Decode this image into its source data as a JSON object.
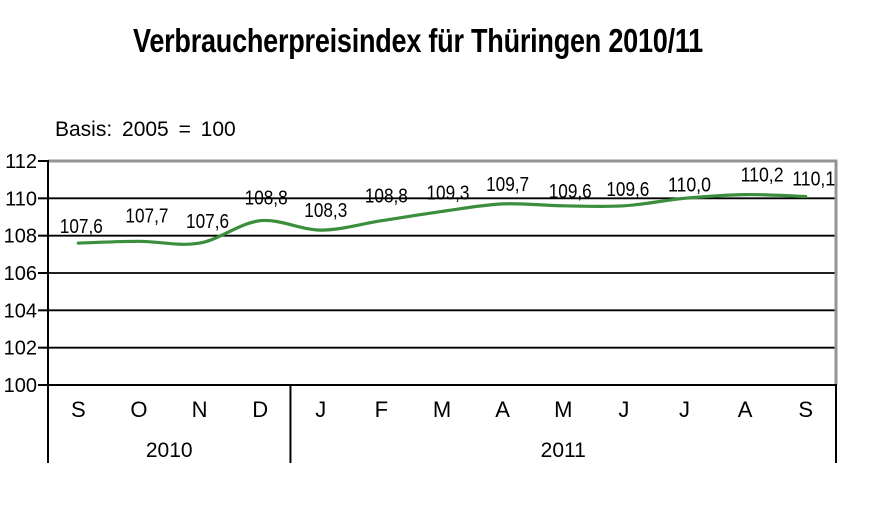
{
  "title": "Verbraucherpreisindex für Thüringen 2010/11",
  "subtitle": "Basis: 2005 = 100",
  "colors": {
    "line": "#3a8e3c",
    "gridline": "#000000",
    "axis": "#000000",
    "plot_border": "#949494",
    "text": "#000000",
    "background": "#ffffff"
  },
  "chart_data": {
    "type": "line",
    "title": "Verbraucherpreisindex für Thüringen 2010/11",
    "subtitle": "Basis: 2005 = 100",
    "x_categories": [
      "S",
      "O",
      "N",
      "D",
      "J",
      "F",
      "M",
      "A",
      "M",
      "J",
      "J",
      "A",
      "S"
    ],
    "year_groups": [
      {
        "label": "2010",
        "span": 4
      },
      {
        "label": "2011",
        "span": 9
      }
    ],
    "values": [
      107.6,
      107.7,
      107.6,
      108.8,
      108.3,
      108.8,
      109.3,
      109.7,
      109.6,
      109.6,
      110.0,
      110.2,
      110.1
    ],
    "data_labels": [
      "107,6",
      "107,7",
      "107,6",
      "108,8",
      "108,3",
      "108,8",
      "109,3",
      "109,7",
      "109,6",
      "109,6",
      "110,0",
      "110,2",
      "110,1"
    ],
    "y_ticks": [
      100,
      102,
      104,
      106,
      108,
      110,
      112
    ],
    "y_tick_labels": [
      "100",
      "102",
      "104",
      "106",
      "108",
      "110",
      "112"
    ],
    "ylim": [
      100,
      112
    ],
    "grid": "horizontal",
    "line_smoothed": true,
    "legend": "none"
  }
}
